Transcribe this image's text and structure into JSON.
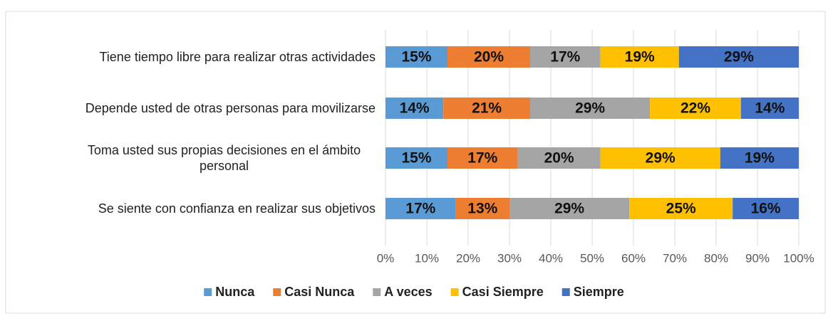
{
  "chart_data": {
    "type": "bar",
    "orientation": "horizontal",
    "stacked": true,
    "categories": [
      "Tiene tiempo libre para realizar otras actividades",
      "Depende usted de otras personas para movilizarse",
      "Toma usted sus propias decisiones en el ámbito personal",
      "Se siente con confianza en realizar sus objetivos"
    ],
    "series": [
      {
        "name": "Nunca",
        "color": "#5b9bd5",
        "values": [
          15,
          14,
          15,
          17
        ],
        "value_labels": [
          "15%",
          "14%",
          "15%",
          "17%"
        ]
      },
      {
        "name": "Casi Nunca",
        "color": "#ed7d31",
        "values": [
          20,
          21,
          17,
          13
        ],
        "value_labels": [
          "20%",
          "21%",
          "17%",
          "13%"
        ]
      },
      {
        "name": "A veces",
        "color": "#a5a5a5",
        "values": [
          17,
          29,
          20,
          29
        ],
        "value_labels": [
          "17%",
          "29%",
          "20%",
          "29%"
        ]
      },
      {
        "name": "Casi Siempre",
        "color": "#ffc000",
        "values": [
          19,
          22,
          29,
          25
        ],
        "value_labels": [
          "19%",
          "22%",
          "29%",
          "25%"
        ]
      },
      {
        "name": "Siempre",
        "color": "#4472c4",
        "values": [
          29,
          14,
          19,
          16
        ],
        "value_labels": [
          "29%",
          "14%",
          "19%",
          "16%"
        ]
      }
    ],
    "xlim": [
      0,
      100
    ],
    "xticks": [
      {
        "value": 0,
        "label": "0%"
      },
      {
        "value": 10,
        "label": "10%"
      },
      {
        "value": 20,
        "label": "20%"
      },
      {
        "value": 30,
        "label": "30%"
      },
      {
        "value": 40,
        "label": "40%"
      },
      {
        "value": 50,
        "label": "50%"
      },
      {
        "value": 60,
        "label": "60%"
      },
      {
        "value": 70,
        "label": "70%"
      },
      {
        "value": 80,
        "label": "80%"
      },
      {
        "value": 90,
        "label": "90%"
      },
      {
        "value": 100,
        "label": "100%"
      }
    ],
    "grid": true,
    "legend": "bottom"
  }
}
